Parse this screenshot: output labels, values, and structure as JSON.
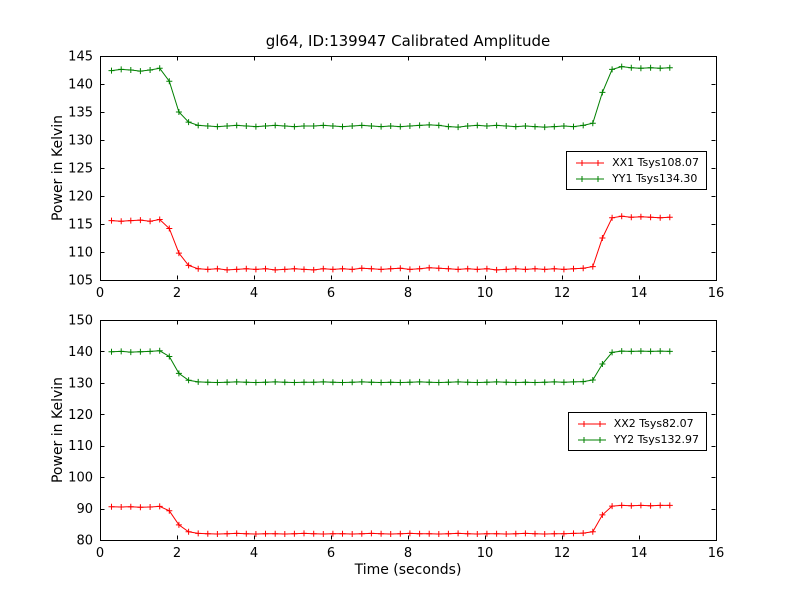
{
  "title": "gl64, ID:139947 Calibrated Amplitude",
  "xlabel": "Time (seconds)",
  "chart_data": [
    {
      "type": "line",
      "ylabel": "Power in Kelvin",
      "xlim": [
        0,
        16
      ],
      "ylim": [
        105,
        145
      ],
      "xticks": [
        0,
        2,
        4,
        6,
        8,
        10,
        12,
        14,
        16
      ],
      "yticks": [
        105,
        110,
        115,
        120,
        125,
        130,
        135,
        140,
        145
      ],
      "grid": false,
      "legend_position": "center-right",
      "x": [
        0.3,
        0.55,
        0.8,
        1.05,
        1.3,
        1.55,
        1.8,
        2.05,
        2.3,
        2.55,
        2.8,
        3.05,
        3.3,
        3.55,
        3.8,
        4.05,
        4.3,
        4.55,
        4.8,
        5.05,
        5.3,
        5.55,
        5.8,
        6.05,
        6.3,
        6.55,
        6.8,
        7.05,
        7.3,
        7.55,
        7.8,
        8.05,
        8.3,
        8.55,
        8.8,
        9.05,
        9.3,
        9.55,
        9.8,
        10.05,
        10.3,
        10.55,
        10.8,
        11.05,
        11.3,
        11.55,
        11.8,
        12.05,
        12.3,
        12.55,
        12.8,
        13.05,
        13.3,
        13.55,
        13.8,
        14.05,
        14.3,
        14.55,
        14.8
      ],
      "series": [
        {
          "name": "XX1 Tsys108.07",
          "color": "#ff0000",
          "values": [
            115.6,
            115.5,
            115.6,
            115.7,
            115.5,
            115.8,
            114.2,
            109.8,
            107.6,
            107.0,
            106.9,
            107.0,
            106.8,
            106.9,
            107.0,
            106.9,
            107.0,
            106.8,
            106.9,
            107.0,
            106.9,
            106.8,
            107.0,
            106.9,
            107.0,
            106.9,
            107.1,
            107.0,
            106.9,
            107.0,
            107.1,
            106.9,
            107.0,
            107.2,
            107.1,
            107.0,
            106.9,
            107.0,
            106.9,
            107.0,
            106.8,
            106.9,
            107.0,
            106.9,
            107.0,
            106.9,
            107.0,
            106.9,
            107.0,
            107.1,
            107.4,
            112.5,
            116.1,
            116.4,
            116.2,
            116.3,
            116.2,
            116.1,
            116.2
          ]
        },
        {
          "name": "YY1 Tsys134.30",
          "color": "#008000",
          "values": [
            142.4,
            142.6,
            142.5,
            142.3,
            142.5,
            142.8,
            140.5,
            135.0,
            133.2,
            132.6,
            132.5,
            132.4,
            132.5,
            132.6,
            132.5,
            132.4,
            132.5,
            132.6,
            132.5,
            132.4,
            132.5,
            132.5,
            132.6,
            132.5,
            132.4,
            132.5,
            132.6,
            132.5,
            132.4,
            132.5,
            132.4,
            132.5,
            132.6,
            132.7,
            132.6,
            132.4,
            132.3,
            132.5,
            132.6,
            132.5,
            132.6,
            132.5,
            132.4,
            132.5,
            132.4,
            132.3,
            132.4,
            132.5,
            132.4,
            132.6,
            133.0,
            138.5,
            142.6,
            143.1,
            142.9,
            142.8,
            142.9,
            142.8,
            142.9
          ]
        }
      ]
    },
    {
      "type": "line",
      "ylabel": "Power in Kelvin",
      "xlim": [
        0,
        16
      ],
      "ylim": [
        80,
        150
      ],
      "xticks": [
        0,
        2,
        4,
        6,
        8,
        10,
        12,
        14,
        16
      ],
      "yticks": [
        80,
        90,
        100,
        110,
        120,
        130,
        140,
        150
      ],
      "grid": false,
      "legend_position": "center-right",
      "x": [
        0.3,
        0.55,
        0.8,
        1.05,
        1.3,
        1.55,
        1.8,
        2.05,
        2.3,
        2.55,
        2.8,
        3.05,
        3.3,
        3.55,
        3.8,
        4.05,
        4.3,
        4.55,
        4.8,
        5.05,
        5.3,
        5.55,
        5.8,
        6.05,
        6.3,
        6.55,
        6.8,
        7.05,
        7.3,
        7.55,
        7.8,
        8.05,
        8.3,
        8.55,
        8.8,
        9.05,
        9.3,
        9.55,
        9.8,
        10.05,
        10.3,
        10.55,
        10.8,
        11.05,
        11.3,
        11.55,
        11.8,
        12.05,
        12.3,
        12.55,
        12.8,
        13.05,
        13.3,
        13.55,
        13.8,
        14.05,
        14.3,
        14.55,
        14.8
      ],
      "series": [
        {
          "name": "XX2 Tsys82.07",
          "color": "#ff0000",
          "values": [
            90.6,
            90.5,
            90.6,
            90.4,
            90.5,
            90.7,
            89.3,
            84.8,
            82.6,
            82.1,
            82.0,
            81.9,
            82.0,
            82.1,
            82.0,
            81.9,
            82.0,
            82.0,
            81.9,
            82.0,
            82.1,
            82.0,
            81.9,
            82.0,
            82.0,
            81.9,
            82.0,
            82.1,
            82.0,
            81.9,
            82.0,
            82.1,
            82.0,
            82.0,
            81.9,
            82.0,
            82.1,
            82.0,
            81.9,
            82.0,
            82.0,
            81.9,
            82.0,
            82.1,
            82.0,
            81.9,
            82.0,
            82.0,
            82.1,
            82.2,
            82.6,
            88.0,
            90.8,
            91.0,
            90.9,
            91.0,
            90.9,
            91.0,
            91.0
          ]
        },
        {
          "name": "YY2 Tsys132.97",
          "color": "#008000",
          "values": [
            139.9,
            140.0,
            139.8,
            139.9,
            140.0,
            140.2,
            138.4,
            133.0,
            130.8,
            130.3,
            130.2,
            130.1,
            130.2,
            130.3,
            130.2,
            130.1,
            130.2,
            130.3,
            130.2,
            130.1,
            130.2,
            130.2,
            130.3,
            130.2,
            130.1,
            130.2,
            130.3,
            130.2,
            130.1,
            130.2,
            130.1,
            130.2,
            130.3,
            130.2,
            130.1,
            130.2,
            130.3,
            130.2,
            130.1,
            130.2,
            130.3,
            130.2,
            130.1,
            130.2,
            130.1,
            130.2,
            130.3,
            130.2,
            130.3,
            130.4,
            130.9,
            136.0,
            139.7,
            140.1,
            140.0,
            140.1,
            140.0,
            140.1,
            140.0
          ]
        }
      ]
    }
  ]
}
